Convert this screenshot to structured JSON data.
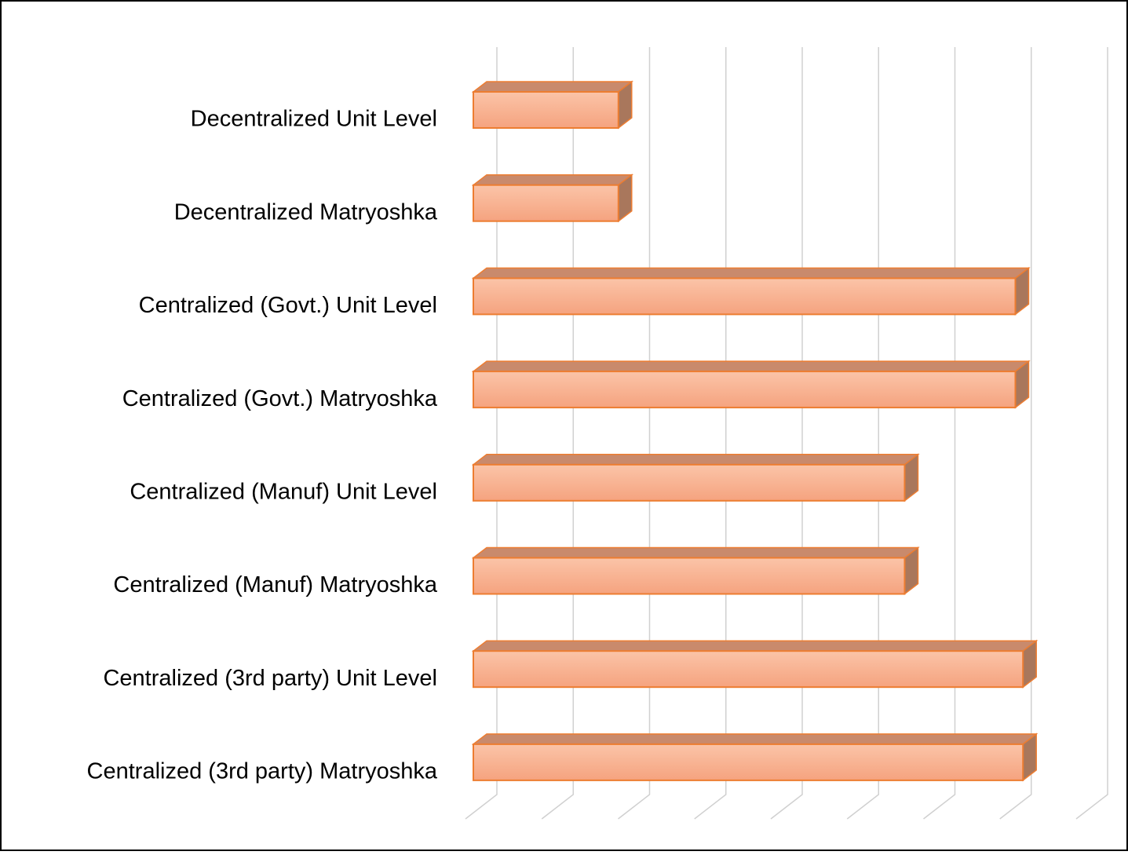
{
  "chart_data": {
    "type": "bar3d-horizontal",
    "categories": [
      "Decentralized Unit Level",
      "Decentralized Matryoshka",
      "Centralized (Govt.) Unit Level",
      "Centralized (Govt.) Matryoshka",
      "Centralized (Manuf) Unit Level",
      "Centralized (Manuf) Matryoshka",
      "Centralized (3rd party) Unit Level",
      "Centralized (3rd party) Matryoshka"
    ],
    "values": [
      1.9,
      1.9,
      7.1,
      7.1,
      5.65,
      5.65,
      7.2,
      7.2
    ],
    "color": "#f7b08f",
    "xlim": [
      0,
      8
    ],
    "xticks": [
      0,
      1,
      2,
      3,
      4,
      5,
      6,
      7,
      8
    ],
    "grid": true
  }
}
